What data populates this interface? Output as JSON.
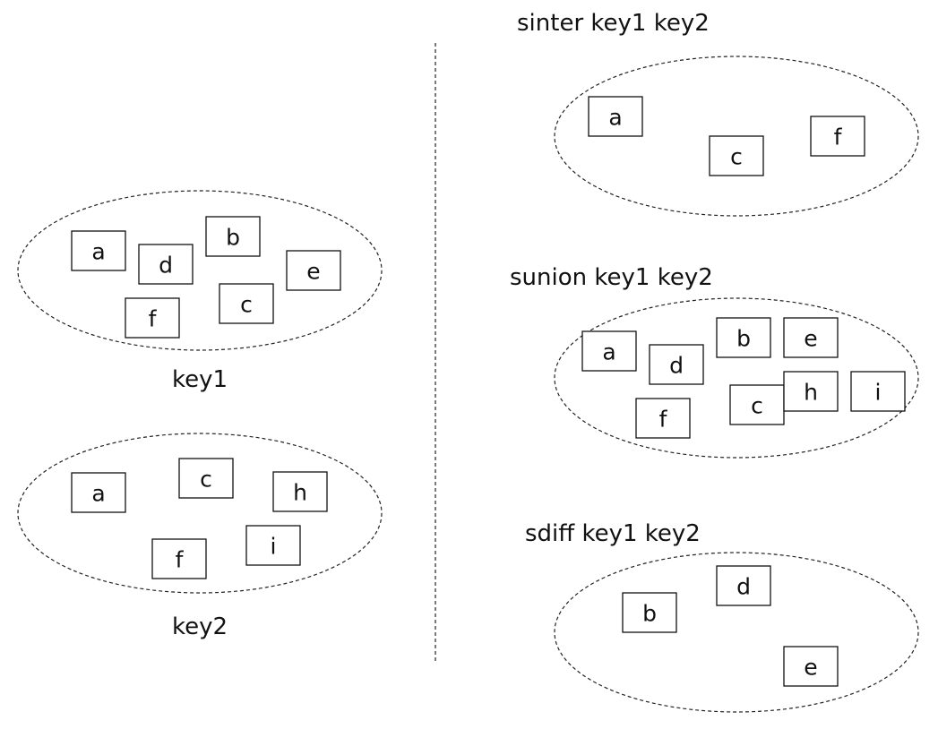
{
  "sets": {
    "key1": {
      "label": "key1",
      "elements": [
        "a",
        "b",
        "d",
        "e",
        "f",
        "c"
      ]
    },
    "key2": {
      "label": "key2",
      "elements": [
        "a",
        "c",
        "h",
        "f",
        "i"
      ]
    }
  },
  "operations": {
    "sinter": {
      "label": "sinter key1 key2",
      "elements": [
        "a",
        "c",
        "f"
      ]
    },
    "sunion": {
      "label": "sunion key1 key2",
      "elements": [
        "a",
        "d",
        "b",
        "e",
        "h",
        "i",
        "f",
        "c"
      ]
    },
    "sdiff": {
      "label": "sdiff key1 key2",
      "elements": [
        "b",
        "d",
        "e"
      ]
    }
  }
}
